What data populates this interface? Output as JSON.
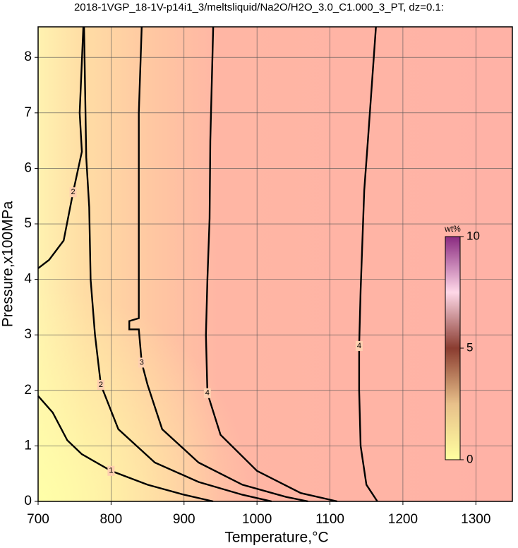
{
  "chart_data": {
    "type": "contour",
    "title": "2018-1VGP_18-1V-p14i1_3/meltsliquid/Na2O/H2O_3.0_C1.000_3_PT, dz=0.1:",
    "xlabel": "Temperature,°C",
    "ylabel": "Pressure,x100MPa",
    "xlim": [
      700,
      1350
    ],
    "ylim": [
      0,
      8.55
    ],
    "xticks": [
      700,
      800,
      900,
      1000,
      1100,
      1200,
      1300
    ],
    "yticks": [
      0,
      1,
      2,
      3,
      4,
      5,
      6,
      7,
      8
    ],
    "grid": true,
    "contours": [
      {
        "level": 1,
        "x": [
          700,
          720,
          740,
          760,
          800,
          850,
          900,
          940
        ],
        "y": [
          1.9,
          1.6,
          1.1,
          0.85,
          0.55,
          0.3,
          0.12,
          0
        ]
      },
      {
        "level": 2,
        "x": [
          762,
          757,
          760,
          748,
          735,
          715,
          700
        ],
        "y": [
          8.55,
          7.0,
          6.3,
          5.57,
          4.7,
          4.35,
          4.2
        ]
      },
      {
        "level": 2,
        "x": [
          763,
          766,
          770,
          772,
          778,
          786,
          810,
          860,
          920,
          980,
          1020
        ],
        "y": [
          8.55,
          6.2,
          5.3,
          4.0,
          3.0,
          2.1,
          1.3,
          0.7,
          0.35,
          0.12,
          0
        ]
      },
      {
        "level": 3,
        "x": [
          842,
          838,
          838,
          838,
          825,
          825,
          838,
          842,
          850,
          870,
          920,
          980,
          1040,
          1070
        ],
        "y": [
          8.55,
          7.0,
          5.1,
          3.3,
          3.25,
          3.1,
          3.1,
          2.5,
          2.1,
          1.3,
          0.7,
          0.3,
          0.08,
          0
        ]
      },
      {
        "level": 4,
        "x": [
          940,
          936,
          935,
          932,
          930,
          932,
          950,
          1000,
          1060,
          1110
        ],
        "y": [
          8.55,
          6.5,
          5.1,
          4.0,
          3.0,
          1.95,
          1.2,
          0.55,
          0.15,
          0
        ]
      },
      {
        "level": 4,
        "x": [
          1163,
          1152,
          1147,
          1142,
          1140,
          1140,
          1142,
          1150,
          1165
        ],
        "y": [
          8.55,
          6.5,
          5.6,
          3.8,
          2.8,
          2.0,
          1.0,
          0.3,
          0
        ]
      }
    ],
    "colorbar": {
      "label": "wt%",
      "lim": [
        0,
        10
      ],
      "ticks": [
        0,
        5,
        10
      ]
    }
  }
}
